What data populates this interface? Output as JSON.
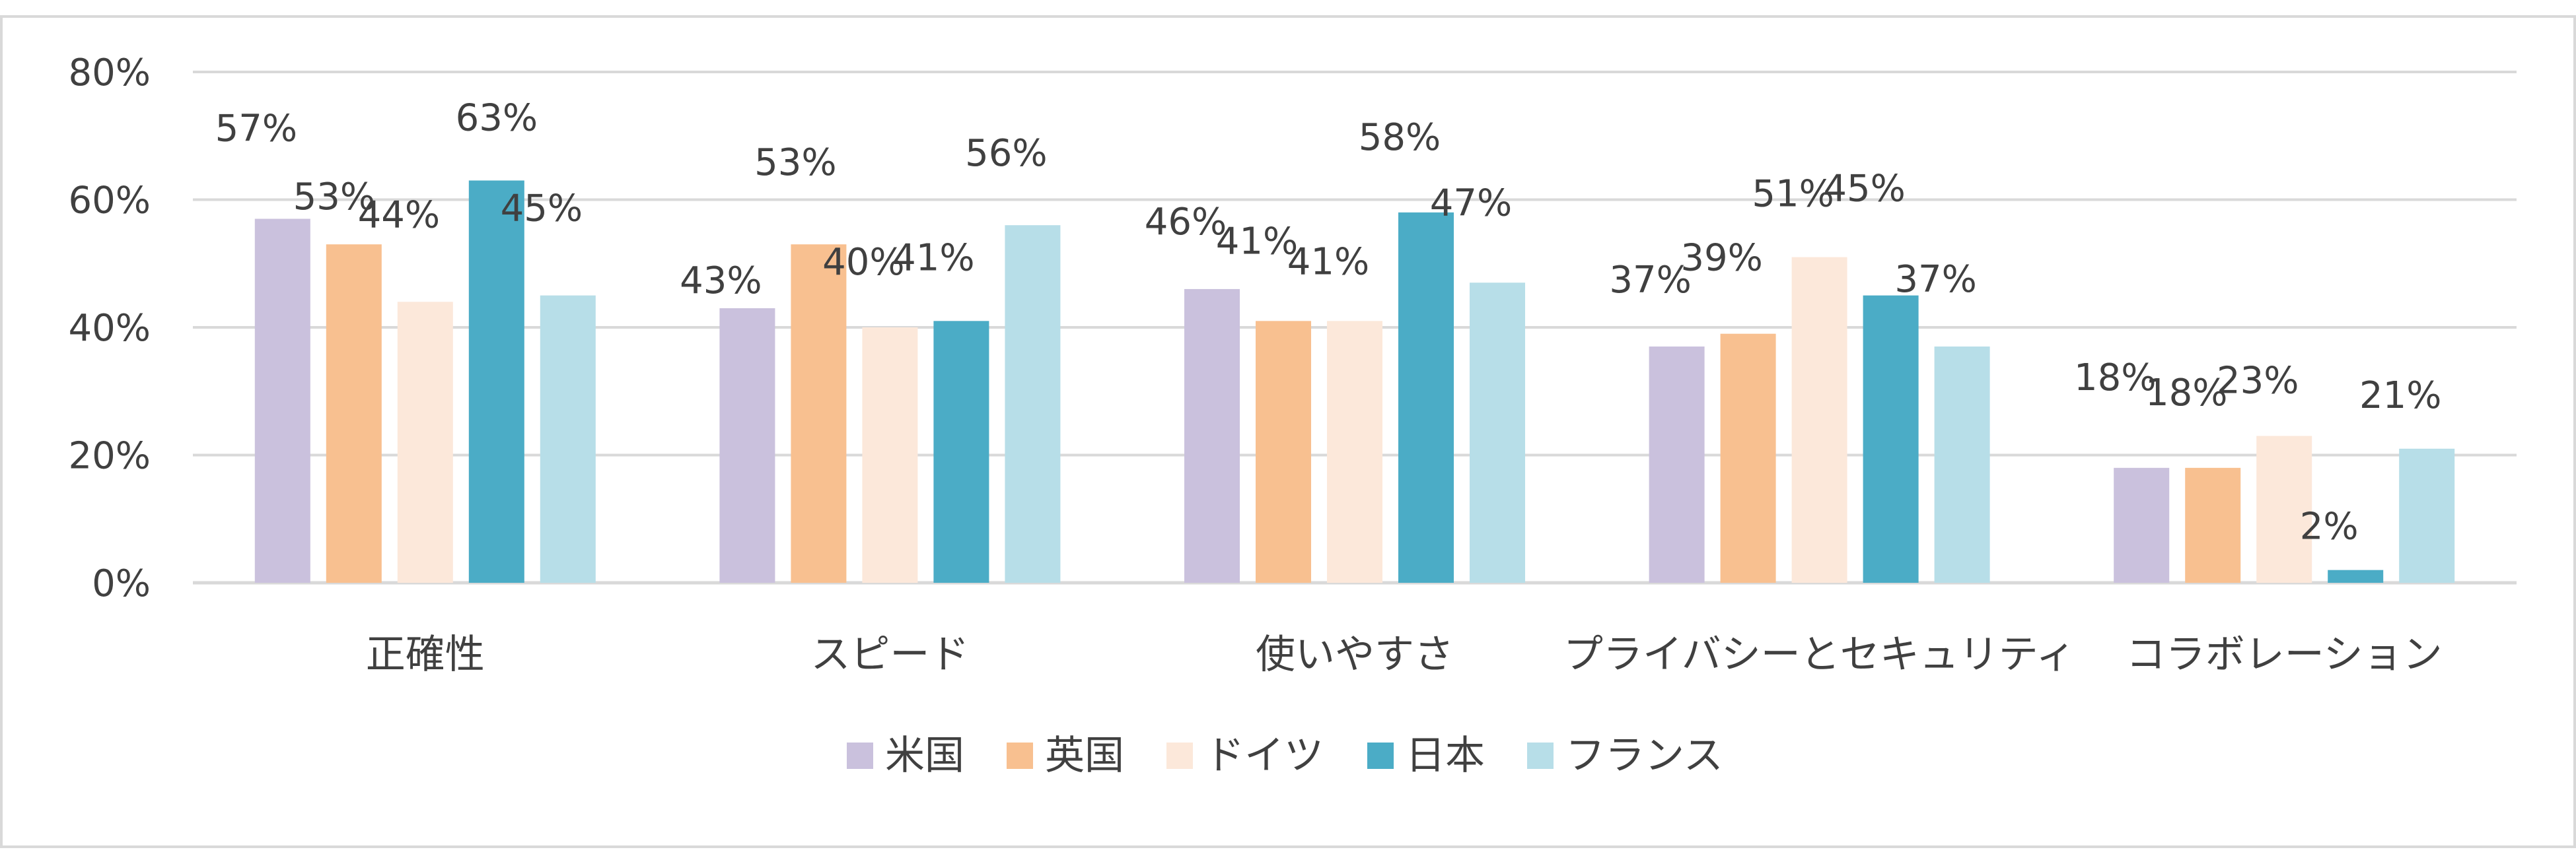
{
  "chart_data": {
    "type": "bar",
    "title": "",
    "xlabel": "",
    "ylabel": "",
    "ylim": [
      0,
      80
    ],
    "yticks": [
      "0%",
      "20%",
      "40%",
      "60%",
      "80%"
    ],
    "grid": true,
    "legend_position": "bottom",
    "categories": [
      "正確性",
      "スピード",
      "使いやすさ",
      "プライバシーとセキュリティ",
      "コラボレーション"
    ],
    "series": [
      {
        "name": "米国",
        "color": "#CAC1DD",
        "values": [
          57,
          43,
          46,
          37,
          18
        ],
        "labels": [
          "57%",
          "43%",
          "46%",
          "37%",
          "18%"
        ]
      },
      {
        "name": "英国",
        "color": "#F8C090",
        "values": [
          53,
          53,
          41,
          39,
          18
        ],
        "labels": [
          "53%",
          "53%",
          "41%",
          "39%",
          "18%"
        ]
      },
      {
        "name": "ドイツ",
        "color": "#FCE8DA",
        "values": [
          44,
          40,
          41,
          51,
          23
        ],
        "labels": [
          "44%",
          "40%",
          "41%",
          "51%",
          "23%"
        ]
      },
      {
        "name": "日本",
        "color": "#4BACC6",
        "values": [
          63,
          41,
          58,
          45,
          2
        ],
        "labels": [
          "63%",
          "41%",
          "58%",
          "45%",
          "2%"
        ]
      },
      {
        "name": "フランス",
        "color": "#B7DEE8",
        "values": [
          45,
          56,
          47,
          37,
          21
        ],
        "labels": [
          "45%",
          "56%",
          "47%",
          "37%",
          "21%"
        ]
      }
    ]
  }
}
